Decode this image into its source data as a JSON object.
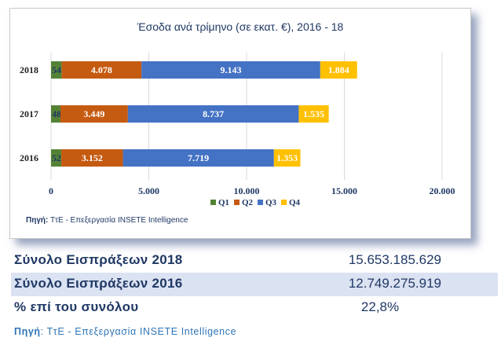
{
  "chart_data": {
    "type": "bar",
    "orientation": "horizontal",
    "stacked": true,
    "title": "Έσοδα ανά τρίμηνο (σε εκατ. €), 2016 - 18",
    "categories": [
      "2018",
      "2017",
      "2016"
    ],
    "series": [
      {
        "name": "Q1",
        "color": "#548235",
        "values": [
          547,
          481,
          526
        ],
        "labels": [
          "547",
          "481",
          "526"
        ]
      },
      {
        "name": "Q2",
        "color": "#c55a11",
        "values": [
          4078,
          3449,
          3152
        ],
        "labels": [
          "4.078",
          "3.449",
          "3.152"
        ]
      },
      {
        "name": "Q3",
        "color": "#4472c4",
        "values": [
          9143,
          8737,
          7719
        ],
        "labels": [
          "9.143",
          "8.737",
          "7.719"
        ]
      },
      {
        "name": "Q4",
        "color": "#ffc000",
        "values": [
          1884,
          1535,
          1353
        ],
        "labels": [
          "1.884",
          "1.535",
          "1.353"
        ]
      }
    ],
    "x_ticks": [
      0,
      5000,
      10000,
      15000,
      20000
    ],
    "x_tick_labels": [
      "0",
      "5.000",
      "10.000",
      "15.000",
      "20.000"
    ],
    "xlim": [
      0,
      20000
    ],
    "grid": true,
    "legend": "bottom",
    "source_prefix": "Πηγή:",
    "source_text": " ΤτΕ - Επεξεργασία INSETE Intelligence"
  },
  "summary": {
    "rows": [
      {
        "label": "Σύνολο Εισπράξεων 2018",
        "value": "15.653.185.629"
      },
      {
        "label": "Σύνολο Εισπράξεων 2016",
        "value": "12.749.275.919"
      },
      {
        "label": "% επί του συνόλου",
        "value": "22,8%"
      }
    ]
  },
  "footer": {
    "source_prefix": "Πηγή",
    "source_text": ": ΤτΕ - Επεξεργασία INSETE Intelligence"
  }
}
